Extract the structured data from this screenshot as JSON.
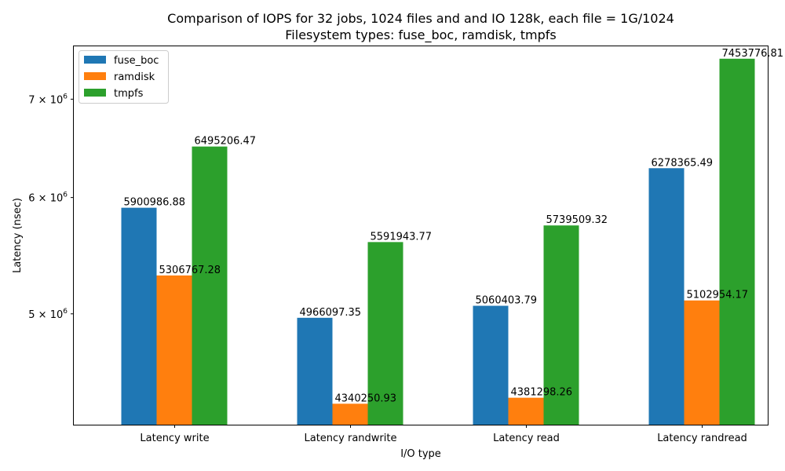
{
  "chart_data": {
    "type": "bar",
    "title_line1": "Comparison of IOPS for 32 jobs, 1024 files and  and IO 128k, each file = 1G/1024",
    "title_line2": "Filesystem types: fuse_boc, ramdisk, tmpfs",
    "xlabel": "I/O type",
    "ylabel": "Latency (nsec)",
    "yscale": "log",
    "ylim": [
      4200000,
      7600000
    ],
    "yticks": [
      {
        "value": 5000000,
        "mantissa": "5",
        "base": "10",
        "exp": "6"
      },
      {
        "value": 6000000,
        "mantissa": "6",
        "base": "10",
        "exp": "6"
      },
      {
        "value": 7000000,
        "mantissa": "7",
        "base": "10",
        "exp": "6"
      }
    ],
    "categories": [
      "Latency write",
      "Latency randwrite",
      "Latency read",
      "Latency randread"
    ],
    "series": [
      {
        "name": "fuse_boc",
        "color": "#1f77b4",
        "values": [
          5900986.88,
          4966097.35,
          5060403.79,
          6278365.49
        ],
        "labels": [
          "5900986.88",
          "4966097.35",
          "5060403.79",
          "6278365.49"
        ]
      },
      {
        "name": "ramdisk",
        "color": "#ff7f0e",
        "values": [
          5306767.28,
          4340250.93,
          4381298.26,
          5102954.17
        ],
        "labels": [
          "5306767.28",
          "4340250.93",
          "4381298.26",
          "5102954.17"
        ]
      },
      {
        "name": "tmpfs",
        "color": "#2ca02c",
        "values": [
          6495206.47,
          5591943.77,
          5739509.32,
          7453776.81
        ],
        "labels": [
          "6495206.47",
          "5591943.77",
          "5739509.32",
          "7453776.81"
        ]
      }
    ],
    "legend_position": "top-left",
    "grid": false
  }
}
